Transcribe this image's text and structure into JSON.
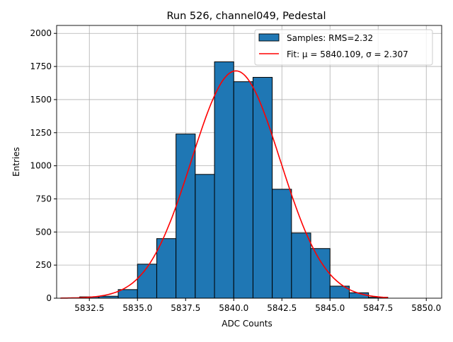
{
  "chart_data": {
    "type": "bar",
    "title": "Run 526, channel049, Pedestal",
    "xlabel": "ADC Counts",
    "ylabel": "Entries",
    "xlim": [
      5830.8,
      5850.8
    ],
    "ylim": [
      0,
      2060
    ],
    "xticks": [
      5832.5,
      5835.0,
      5837.5,
      5840.0,
      5842.5,
      5845.0,
      5847.5,
      5850.0
    ],
    "xtick_labels": [
      "5832.5",
      "5835.0",
      "5837.5",
      "5840.0",
      "5842.5",
      "5845.0",
      "5847.5",
      "5850.0"
    ],
    "yticks": [
      0,
      250,
      500,
      750,
      1000,
      1250,
      1500,
      1750,
      2000
    ],
    "ytick_labels": [
      "0",
      "250",
      "500",
      "750",
      "1000",
      "1250",
      "1500",
      "1750",
      "2000"
    ],
    "grid": true,
    "legend_position": "top-right",
    "bin_edges": [
      5832,
      5833,
      5834,
      5835,
      5836,
      5837,
      5838,
      5839,
      5840,
      5841,
      5842,
      5843,
      5844,
      5845,
      5846,
      5847,
      5848
    ],
    "values": [
      10,
      15,
      65,
      257,
      450,
      1240,
      935,
      1785,
      1635,
      1668,
      823,
      492,
      375,
      91,
      41,
      7
    ],
    "fit": {
      "mu": 5840.109,
      "sigma": 2.307,
      "amplitude": 1717,
      "range": [
        5831,
        5848
      ]
    },
    "legend": [
      {
        "label": "Samples: RMS=2.32",
        "color": "#1f77b4"
      },
      {
        "label": "Fit: μ = 5840.109, σ = 2.307",
        "color": "#ff0000"
      }
    ],
    "colors": {
      "bar": "#1f77b4",
      "fit": "#ff0000"
    }
  }
}
